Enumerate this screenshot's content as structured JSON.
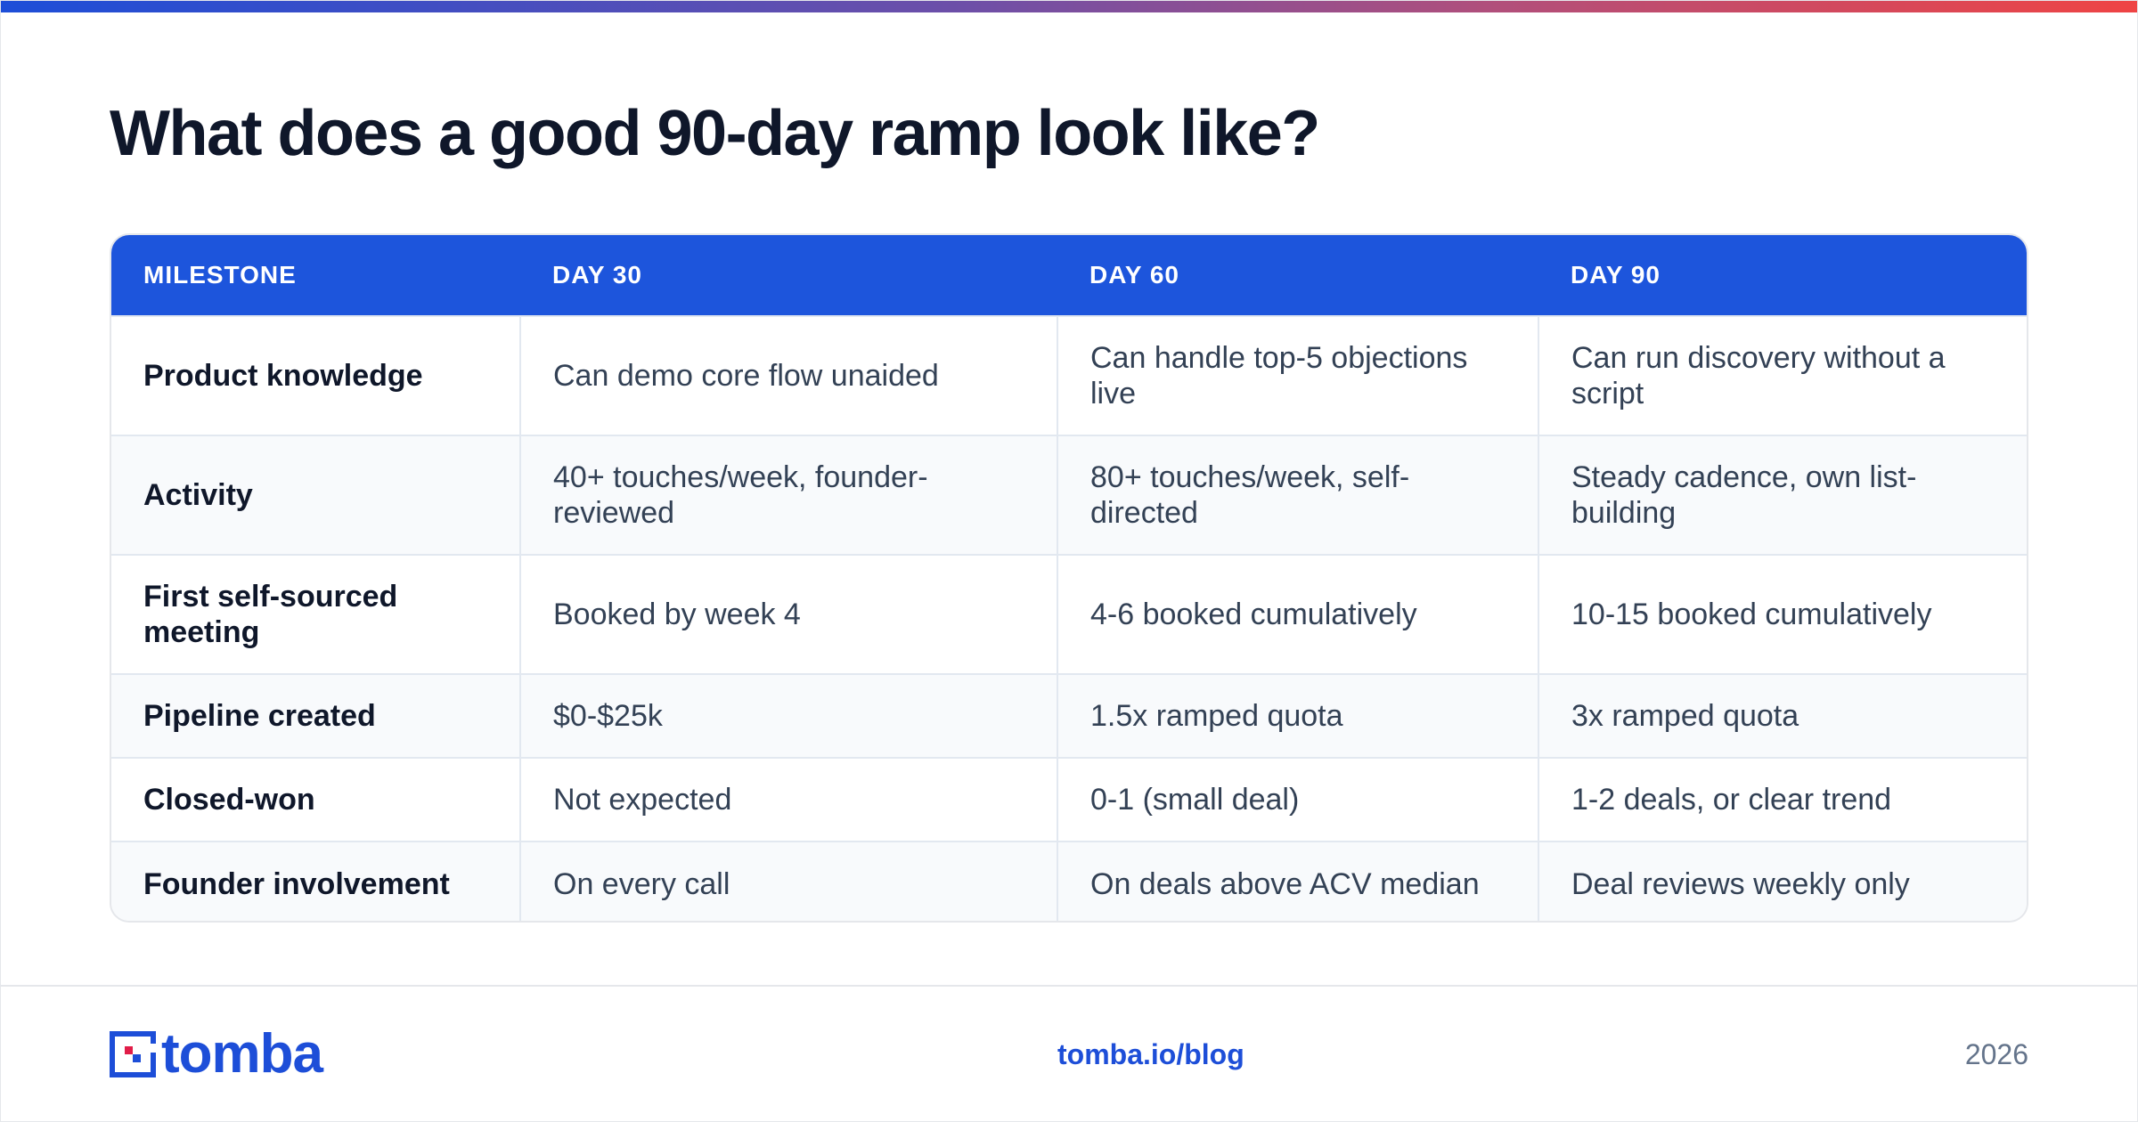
{
  "title": "What does a good 90-day ramp look like?",
  "colors": {
    "accent": "#1d55dc",
    "gradient_start": "#1d4ed8",
    "gradient_end": "#ef4444",
    "logo_red": "#e11d48"
  },
  "table": {
    "headers": [
      "MILESTONE",
      "DAY 30",
      "DAY 60",
      "DAY 90"
    ],
    "rows": [
      {
        "milestone": "Product knowledge",
        "day30": "Can demo core flow unaided",
        "day60": "Can handle top-5 objections live",
        "day90": "Can run discovery without a script"
      },
      {
        "milestone": "Activity",
        "day30": "40+ touches/week, founder-reviewed",
        "day60": "80+ touches/week, self-directed",
        "day90": "Steady cadence, own list-building"
      },
      {
        "milestone": "First self-sourced meeting",
        "day30": "Booked by week 4",
        "day60": "4-6 booked cumulatively",
        "day90": "10-15 booked cumulatively"
      },
      {
        "milestone": "Pipeline created",
        "day30": "$0-$25k",
        "day60": "1.5x ramped quota",
        "day90": "3x ramped quota"
      },
      {
        "milestone": "Closed-won",
        "day30": "Not expected",
        "day60": "0-1 (small deal)",
        "day90": "1-2 deals, or clear trend"
      },
      {
        "milestone": "Founder involvement",
        "day30": "On every call",
        "day60": "On deals above ACV median",
        "day90": "Deal reviews weekly only"
      }
    ]
  },
  "footer": {
    "logo_text": "tomba",
    "link": "tomba.io/blog",
    "year": "2026"
  }
}
